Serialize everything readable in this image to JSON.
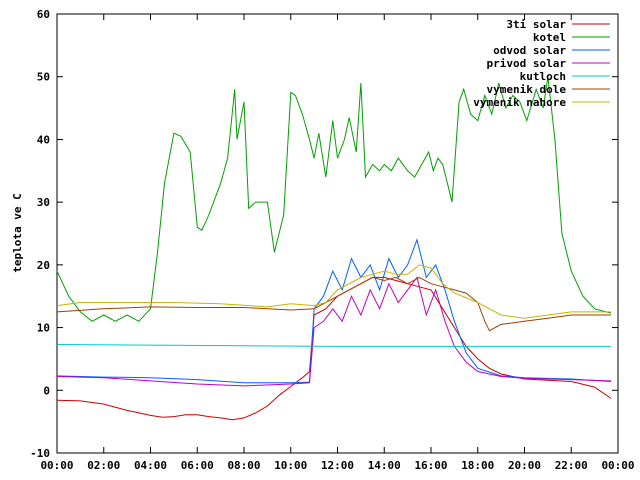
{
  "chart_data": {
    "type": "line",
    "ylabel": "teplota ve C",
    "xlabel": "",
    "title": "",
    "xlim": [
      0,
      24
    ],
    "ylim": [
      -10,
      60
    ],
    "x_ticks": [
      "00:00",
      "02:00",
      "04:00",
      "06:00",
      "08:00",
      "10:00",
      "12:00",
      "14:00",
      "16:00",
      "18:00",
      "20:00",
      "22:00",
      "00:00"
    ],
    "y_ticks": [
      -10,
      0,
      10,
      20,
      30,
      40,
      50,
      60
    ],
    "grid": false,
    "legend_position": "top-right",
    "series": [
      {
        "name": "3ti solar",
        "color": "#cc0000",
        "points": [
          [
            0,
            -1.6
          ],
          [
            1,
            -1.7
          ],
          [
            2,
            -2.2
          ],
          [
            3,
            -3.2
          ],
          [
            4,
            -4
          ],
          [
            4.5,
            -4.3
          ],
          [
            5,
            -4.2
          ],
          [
            5.5,
            -3.9
          ],
          [
            6,
            -3.9
          ],
          [
            6.5,
            -4.2
          ],
          [
            7,
            -4.4
          ],
          [
            7.5,
            -4.7
          ],
          [
            8,
            -4.4
          ],
          [
            8.5,
            -3.6
          ],
          [
            9,
            -2.5
          ],
          [
            9.5,
            -0.8
          ],
          [
            10,
            0.6
          ],
          [
            10.5,
            2
          ],
          [
            10.8,
            3
          ],
          [
            11,
            12
          ],
          [
            11.5,
            13
          ],
          [
            12,
            15
          ],
          [
            12.5,
            16
          ],
          [
            13,
            17
          ],
          [
            13.5,
            18
          ],
          [
            14,
            18
          ],
          [
            14.5,
            17.5
          ],
          [
            15,
            17
          ],
          [
            15.5,
            16.5
          ],
          [
            16,
            16
          ],
          [
            16.5,
            13
          ],
          [
            17,
            10
          ],
          [
            17.5,
            7
          ],
          [
            18,
            5
          ],
          [
            18.5,
            3.5
          ],
          [
            19,
            2.6
          ],
          [
            20,
            1.8
          ],
          [
            21,
            1.6
          ],
          [
            22,
            1.4
          ],
          [
            23,
            0.5
          ],
          [
            23.7,
            -1.3
          ]
        ]
      },
      {
        "name": "kotel",
        "color": "#00a000",
        "points": [
          [
            0,
            19
          ],
          [
            0.5,
            15
          ],
          [
            1,
            12.5
          ],
          [
            1.5,
            11
          ],
          [
            2,
            12
          ],
          [
            2.5,
            11
          ],
          [
            3,
            12
          ],
          [
            3.5,
            11
          ],
          [
            4,
            13
          ],
          [
            4.3,
            22
          ],
          [
            4.6,
            33
          ],
          [
            5,
            41
          ],
          [
            5.3,
            40.5
          ],
          [
            5.7,
            38
          ],
          [
            6,
            26
          ],
          [
            6.2,
            25.5
          ],
          [
            6.5,
            28
          ],
          [
            7,
            33
          ],
          [
            7.3,
            37
          ],
          [
            7.6,
            48
          ],
          [
            7.7,
            40
          ],
          [
            8,
            46
          ],
          [
            8.2,
            29
          ],
          [
            8.5,
            30
          ],
          [
            9,
            30
          ],
          [
            9.3,
            22
          ],
          [
            9.7,
            28
          ],
          [
            10,
            47.5
          ],
          [
            10.2,
            47
          ],
          [
            10.5,
            44
          ],
          [
            10.8,
            40
          ],
          [
            11,
            37
          ],
          [
            11.2,
            41
          ],
          [
            11.5,
            34
          ],
          [
            11.8,
            43
          ],
          [
            12,
            37
          ],
          [
            12.3,
            40
          ],
          [
            12.5,
            43.5
          ],
          [
            12.8,
            38
          ],
          [
            13,
            49
          ],
          [
            13.2,
            34
          ],
          [
            13.5,
            36
          ],
          [
            13.8,
            35
          ],
          [
            14,
            36
          ],
          [
            14.3,
            35
          ],
          [
            14.6,
            37
          ],
          [
            15,
            35
          ],
          [
            15.3,
            34
          ],
          [
            15.6,
            36
          ],
          [
            15.9,
            38
          ],
          [
            16.1,
            35
          ],
          [
            16.3,
            37
          ],
          [
            16.5,
            36
          ],
          [
            16.7,
            33
          ],
          [
            16.9,
            30
          ],
          [
            17.2,
            46
          ],
          [
            17.4,
            48
          ],
          [
            17.7,
            44
          ],
          [
            18,
            43
          ],
          [
            18.3,
            47
          ],
          [
            18.6,
            44
          ],
          [
            18.9,
            49
          ],
          [
            19.2,
            45
          ],
          [
            19.5,
            47
          ],
          [
            19.8,
            46
          ],
          [
            20.1,
            43
          ],
          [
            20.5,
            48
          ],
          [
            20.8,
            45
          ],
          [
            21,
            50
          ],
          [
            21.3,
            40
          ],
          [
            21.6,
            25
          ],
          [
            22,
            19
          ],
          [
            22.5,
            15
          ],
          [
            23,
            13
          ],
          [
            23.7,
            12.3
          ]
        ]
      },
      {
        "name": "odvod solar",
        "color": "#0060ff",
        "points": [
          [
            0,
            2.3
          ],
          [
            2,
            2.1
          ],
          [
            4,
            2
          ],
          [
            6,
            1.7
          ],
          [
            8,
            1.2
          ],
          [
            10,
            1.2
          ],
          [
            10.8,
            1.3
          ],
          [
            11,
            13
          ],
          [
            11.4,
            15
          ],
          [
            11.8,
            19
          ],
          [
            12.2,
            16
          ],
          [
            12.6,
            21
          ],
          [
            13,
            18
          ],
          [
            13.4,
            20
          ],
          [
            13.8,
            16
          ],
          [
            14.2,
            21
          ],
          [
            14.6,
            18
          ],
          [
            15,
            20
          ],
          [
            15.4,
            24
          ],
          [
            15.8,
            18
          ],
          [
            16.2,
            20
          ],
          [
            16.6,
            16
          ],
          [
            17,
            11
          ],
          [
            17.5,
            6
          ],
          [
            18,
            3.5
          ],
          [
            19,
            2.3
          ],
          [
            20,
            2
          ],
          [
            22,
            1.8
          ],
          [
            23.7,
            1.4
          ]
        ]
      },
      {
        "name": "privod solar",
        "color": "#c000c0",
        "points": [
          [
            0,
            2.2
          ],
          [
            2,
            2
          ],
          [
            4,
            1.5
          ],
          [
            6,
            1
          ],
          [
            8,
            0.7
          ],
          [
            10,
            1
          ],
          [
            10.8,
            1.2
          ],
          [
            11,
            10
          ],
          [
            11.4,
            11
          ],
          [
            11.8,
            13
          ],
          [
            12.2,
            11
          ],
          [
            12.6,
            15
          ],
          [
            13,
            12
          ],
          [
            13.4,
            16
          ],
          [
            13.8,
            13
          ],
          [
            14.2,
            17
          ],
          [
            14.6,
            14
          ],
          [
            15,
            16
          ],
          [
            15.4,
            18
          ],
          [
            15.8,
            12
          ],
          [
            16.2,
            16
          ],
          [
            16.6,
            11
          ],
          [
            17,
            7
          ],
          [
            17.5,
            4.5
          ],
          [
            18,
            3
          ],
          [
            19,
            2.2
          ],
          [
            20,
            1.9
          ],
          [
            22,
            1.7
          ],
          [
            23.7,
            1.5
          ]
        ]
      },
      {
        "name": "kutloch",
        "color": "#00c8c8",
        "points": [
          [
            0,
            7.3
          ],
          [
            4,
            7.2
          ],
          [
            8,
            7.1
          ],
          [
            12,
            7
          ],
          [
            16,
            7
          ],
          [
            20,
            7
          ],
          [
            23.7,
            7
          ]
        ]
      },
      {
        "name": "vymenik dole",
        "color": "#a04000",
        "points": [
          [
            0,
            12.5
          ],
          [
            2,
            13
          ],
          [
            4,
            13.3
          ],
          [
            6,
            13.2
          ],
          [
            8,
            13.2
          ],
          [
            10,
            12.8
          ],
          [
            11,
            13
          ],
          [
            11.5,
            14
          ],
          [
            12,
            15
          ],
          [
            12.5,
            16
          ],
          [
            13,
            17
          ],
          [
            13.5,
            18
          ],
          [
            14,
            17.5
          ],
          [
            14.5,
            18
          ],
          [
            15,
            17
          ],
          [
            15.5,
            18
          ],
          [
            16,
            17
          ],
          [
            16.5,
            16.5
          ],
          [
            17,
            16
          ],
          [
            17.5,
            15.5
          ],
          [
            18,
            14
          ],
          [
            18.3,
            11
          ],
          [
            18.5,
            9.5
          ],
          [
            19,
            10.5
          ],
          [
            20,
            11
          ],
          [
            21,
            11.5
          ],
          [
            22,
            12
          ],
          [
            23.7,
            12
          ]
        ]
      },
      {
        "name": "vymenik nahore",
        "color": "#c8b400",
        "points": [
          [
            0,
            13.5
          ],
          [
            1,
            14
          ],
          [
            3,
            14
          ],
          [
            5,
            14
          ],
          [
            7,
            13.8
          ],
          [
            9,
            13.3
          ],
          [
            10,
            13.8
          ],
          [
            11,
            13.5
          ],
          [
            11.5,
            14
          ],
          [
            12,
            16
          ],
          [
            12.5,
            17
          ],
          [
            13,
            18
          ],
          [
            13.5,
            18.5
          ],
          [
            14,
            19
          ],
          [
            14.5,
            18.5
          ],
          [
            15,
            18.5
          ],
          [
            15.5,
            20
          ],
          [
            16,
            19.5
          ],
          [
            16.5,
            17
          ],
          [
            17,
            15.5
          ],
          [
            18,
            14
          ],
          [
            18.5,
            13
          ],
          [
            19,
            12
          ],
          [
            20,
            11.5
          ],
          [
            21,
            12
          ],
          [
            22,
            12.5
          ],
          [
            23.7,
            12.5
          ]
        ]
      }
    ]
  }
}
